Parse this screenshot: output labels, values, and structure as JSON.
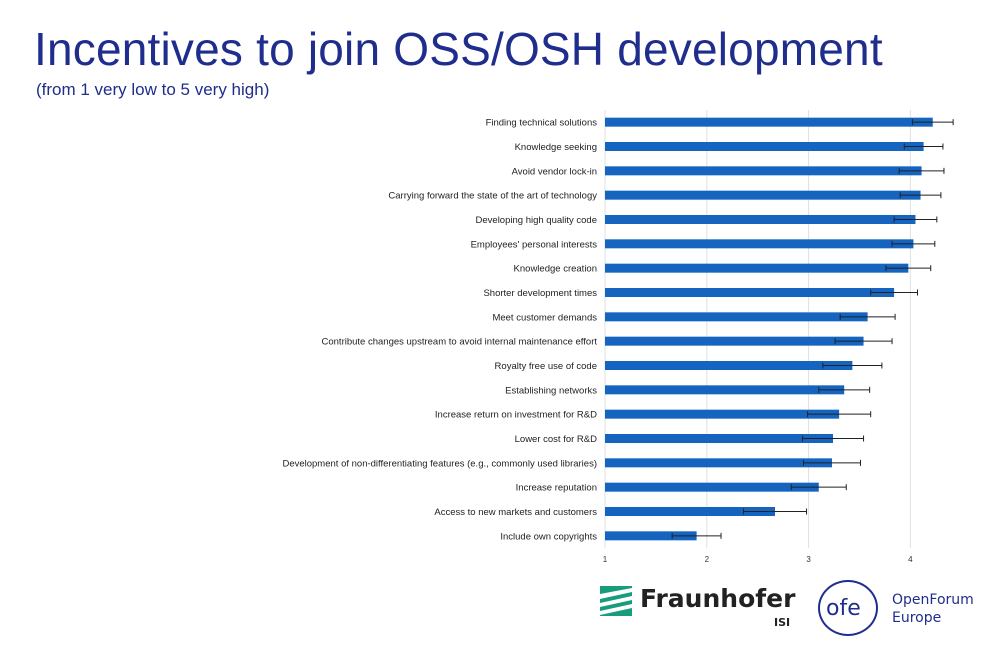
{
  "title": "Incentives to join OSS/OSH development",
  "subtitle": "(from 1 very low to 5 very high)",
  "colors": {
    "bar": "#1565c0",
    "title": "#1f2d8c",
    "error_bar": "#222222",
    "grid": "#e0e0e0"
  },
  "chart_data": {
    "type": "bar",
    "orientation": "horizontal",
    "title": "",
    "xlabel": "",
    "ylabel": "",
    "xlim": [
      1,
      4.35
    ],
    "xticks": [
      1,
      2,
      3,
      4
    ],
    "grid": true,
    "categories": [
      "Finding technical solutions",
      "Knowledge seeking",
      "Avoid vendor lock-in",
      "Carrying forward the state of the art of technology",
      "Developing high quality code",
      "Employees' personal interests",
      "Knowledge creation",
      "Shorter development times",
      "Meet customer demands",
      "Contribute changes upstream to avoid internal maintenance effort",
      "Royalty free use of code",
      "Establishing networks",
      "Increase return on investment for R&D",
      "Lower cost for R&D",
      "Development of non-differentiating features (e.g., commonly used libraries)",
      "Increase reputation",
      "Access to new markets and customers",
      "Include own copyrights"
    ],
    "values": [
      4.22,
      4.13,
      4.11,
      4.1,
      4.05,
      4.03,
      3.98,
      3.84,
      3.58,
      3.54,
      3.43,
      3.35,
      3.3,
      3.24,
      3.23,
      3.1,
      2.67,
      1.9
    ],
    "error": [
      0.2,
      0.19,
      0.22,
      0.2,
      0.21,
      0.21,
      0.22,
      0.23,
      0.27,
      0.28,
      0.29,
      0.25,
      0.31,
      0.3,
      0.28,
      0.27,
      0.31,
      0.24
    ]
  },
  "logos": {
    "fraunhofer": {
      "name": "Fraunhofer",
      "sub": "ISI"
    },
    "ofe": {
      "mark": "ofe",
      "line1": "OpenForum",
      "line2": "Europe"
    }
  }
}
